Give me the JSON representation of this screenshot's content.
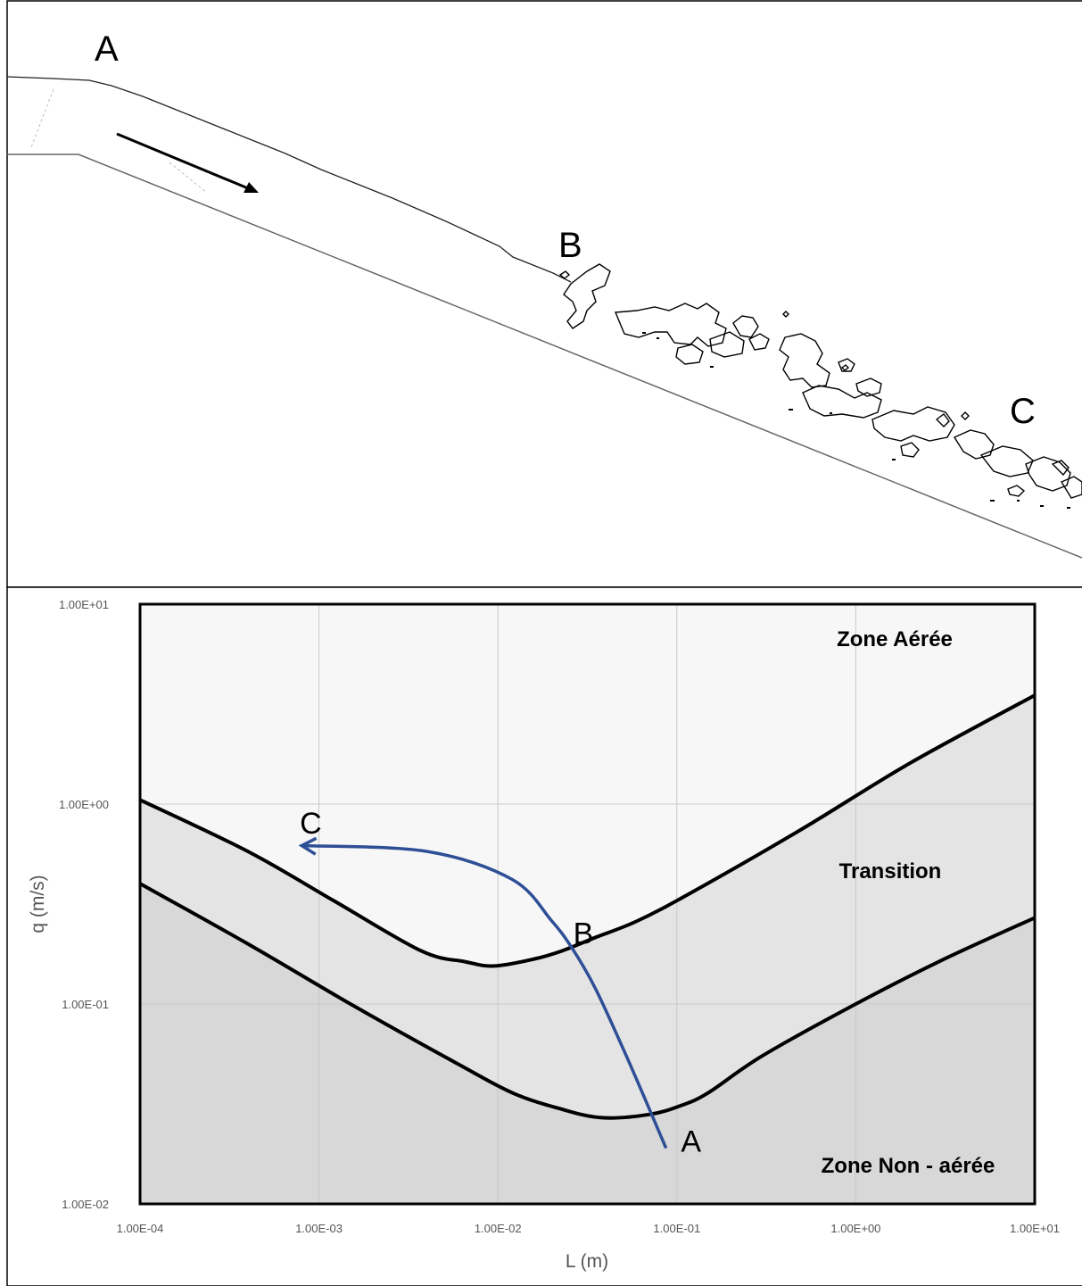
{
  "diagram": {
    "point_labels": {
      "a": "A",
      "b": "B",
      "c": "C"
    }
  },
  "chart_data": {
    "type": "area",
    "xlabel": "L (m)",
    "ylabel": "q (m/s)",
    "x_scale": "log",
    "y_scale": "log",
    "xlim": [
      0.0001,
      10
    ],
    "ylim": [
      0.01,
      10
    ],
    "x_ticks": [
      "1.00E-04",
      "1.00E-03",
      "1.00E-02",
      "1.00E-01",
      "1.00E+00",
      "1.00E+01"
    ],
    "y_ticks": [
      "1.00E-02",
      "1.00E-01",
      "1.00E+00",
      "1.00E+01"
    ],
    "grid": true,
    "colors": {
      "aerated": "#f7f7f7",
      "transition": "#e4e4e4",
      "non_aerated": "#d8d8d8",
      "trajectory": "#2e4f96"
    },
    "zones": {
      "aerated": "Zone Aérée",
      "transition": "Transition",
      "non_aerated": "Zone Non - aérée"
    },
    "series": [
      {
        "x": [
          0.0001,
          0.0004,
          0.0012,
          0.0037,
          0.0065,
          0.0095,
          0.016,
          0.023,
          0.035,
          0.06,
          0.12,
          0.5,
          2,
          10
        ],
        "y": [
          1.05,
          0.58,
          0.33,
          0.185,
          0.163,
          0.155,
          0.168,
          0.185,
          0.215,
          0.26,
          0.36,
          0.75,
          1.6,
          3.5
        ]
      },
      {
        "x": [
          0.0001,
          0.0004,
          0.0015,
          0.006,
          0.012,
          0.022,
          0.038,
          0.07,
          0.105,
          0.15,
          0.3,
          1,
          3,
          10
        ],
        "y": [
          0.4,
          0.2,
          0.1,
          0.05,
          0.036,
          0.03,
          0.027,
          0.028,
          0.031,
          0.036,
          0.055,
          0.1,
          0.165,
          0.27
        ]
      }
    ],
    "trajectory": {
      "x": [
        0.087,
        0.07,
        0.05,
        0.035,
        0.026,
        0.02,
        0.012,
        0.004,
        0.0008
      ],
      "y": [
        0.019,
        0.03,
        0.06,
        0.12,
        0.19,
        0.26,
        0.42,
        0.58,
        0.62
      ],
      "labels": [
        {
          "text": "A",
          "x": 0.12,
          "y": 0.02
        },
        {
          "text": "B",
          "x": 0.03,
          "y": 0.22
        },
        {
          "text": "C",
          "x": 0.0009,
          "y": 0.78
        }
      ]
    }
  }
}
